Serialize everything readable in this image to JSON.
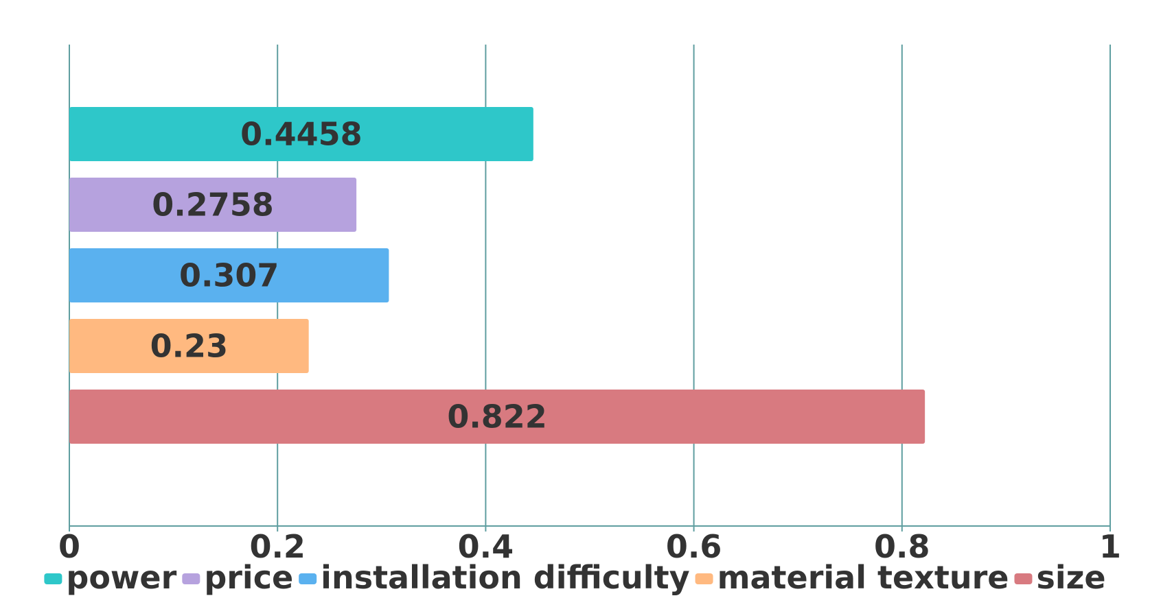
{
  "chart_data": {
    "type": "bar",
    "orientation": "horizontal",
    "title": "",
    "xlabel": "",
    "ylabel": "",
    "xlim": [
      0,
      1
    ],
    "x_ticks": [
      "0",
      "0.2",
      "0.4",
      "0.6",
      "0.8",
      "1"
    ],
    "x_tick_values": [
      0,
      0.2,
      0.4,
      0.6,
      0.8,
      1
    ],
    "grid": true,
    "legend_position": "bottom",
    "axis_color": "#5f9ea0",
    "text_color": "#333333",
    "series": [
      {
        "name": "power",
        "value": 0.4458,
        "label": "0.4458",
        "color": "#2ec7c9"
      },
      {
        "name": "price",
        "value": 0.2758,
        "label": "0.2758",
        "color": "#b6a2de"
      },
      {
        "name": "installation difficulty",
        "value": 0.307,
        "label": "0.307",
        "color": "#5ab1ef"
      },
      {
        "name": "material texture",
        "value": 0.23,
        "label": "0.23",
        "color": "#ffb980"
      },
      {
        "name": "size",
        "value": 0.822,
        "label": "0.822",
        "color": "#d87a80"
      }
    ]
  }
}
